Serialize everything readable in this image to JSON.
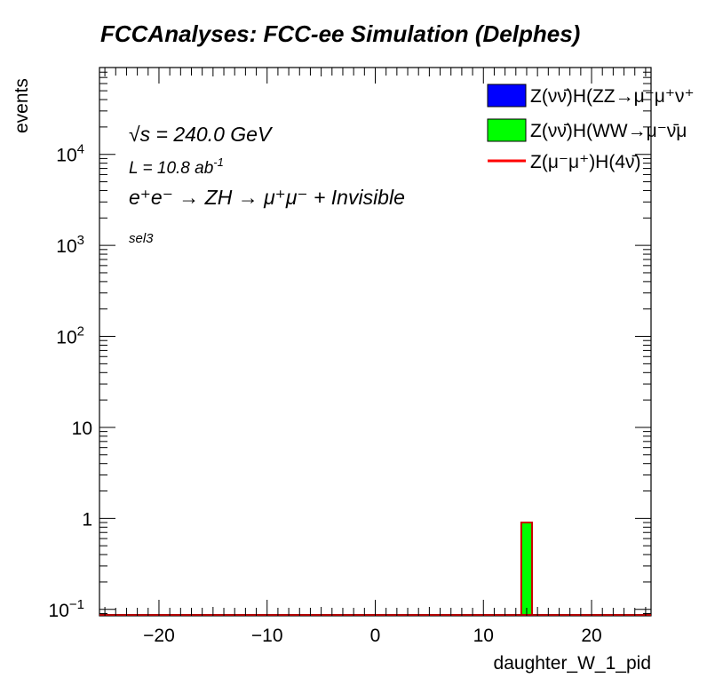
{
  "title": "FCCAnalyses: FCC-ee Simulation (Delphes)",
  "annotations": {
    "energy": "√s = 240.0 GeV",
    "lumi_prefix": "L = 10.8 ab",
    "lumi_exp": "-1",
    "process": "e⁺e⁻ → ZH → μ⁺μ⁻ + Invisible",
    "selection": "sel3"
  },
  "legend": {
    "placement": "top-right",
    "entries": [
      {
        "label": "Z(νν̄)H(ZZ→μ⁻μ⁺ν⁺",
        "style": "fill",
        "color": "#0000ff"
      },
      {
        "label": "Z(νν̄)H(WW→μ⁻ν̄μ",
        "style": "fill",
        "color": "#00ff00"
      },
      {
        "label": "Z(μ⁻μ⁺)H(4ν̄)",
        "style": "line",
        "color": "#ff0000"
      }
    ]
  },
  "chart_data": {
    "type": "bar",
    "title": "FCCAnalyses: FCC-ee Simulation (Delphes)",
    "xlabel": "daughter_W_1_pid",
    "ylabel": "events",
    "xlim": [
      -25.5,
      25.5
    ],
    "ylim": [
      0.085,
      90000
    ],
    "yscale": "log",
    "grid": false,
    "x_ticks": [
      -20,
      -10,
      0,
      10,
      20
    ],
    "x_tick_labels": [
      "−20",
      "−10",
      "0",
      "10",
      "20"
    ],
    "y_ticks": [
      0.1,
      1,
      10,
      100,
      1000,
      10000
    ],
    "y_tick_labels": [
      {
        "base": "10",
        "exp": "−1"
      },
      {
        "base": "1",
        "exp": ""
      },
      {
        "base": "10",
        "exp": ""
      },
      {
        "base": "10",
        "exp": "2"
      },
      {
        "base": "10",
        "exp": "3"
      },
      {
        "base": "10",
        "exp": "4"
      }
    ],
    "series": [
      {
        "name": "Z(νν̄)H(WW→μ⁻ν̄μ",
        "color": "#00ff00",
        "bins": [
          {
            "x0": 13.5,
            "x1": 14.5,
            "value": 0.9
          }
        ]
      },
      {
        "name": "Z(νν̄)H(ZZ→μ⁻μ⁺ν⁺",
        "color": "#0000ff",
        "bins": []
      },
      {
        "name": "Z(μ⁻μ⁺)H(4ν̄)",
        "color": "#ff0000",
        "bins": []
      }
    ]
  }
}
